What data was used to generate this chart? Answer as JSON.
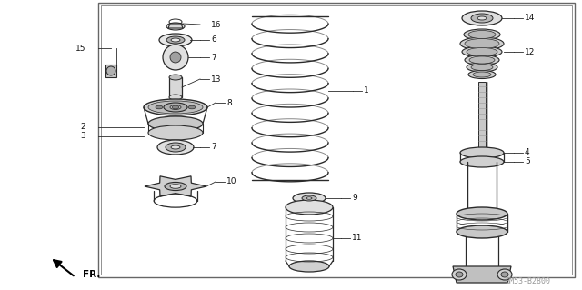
{
  "bg_color": "#ffffff",
  "border_color": "#666666",
  "line_color": "#2a2a2a",
  "text_color": "#111111",
  "gray_color": "#999999",
  "watermark": "SM53-B2800",
  "figsize": [
    6.4,
    3.19
  ],
  "dpi": 100
}
